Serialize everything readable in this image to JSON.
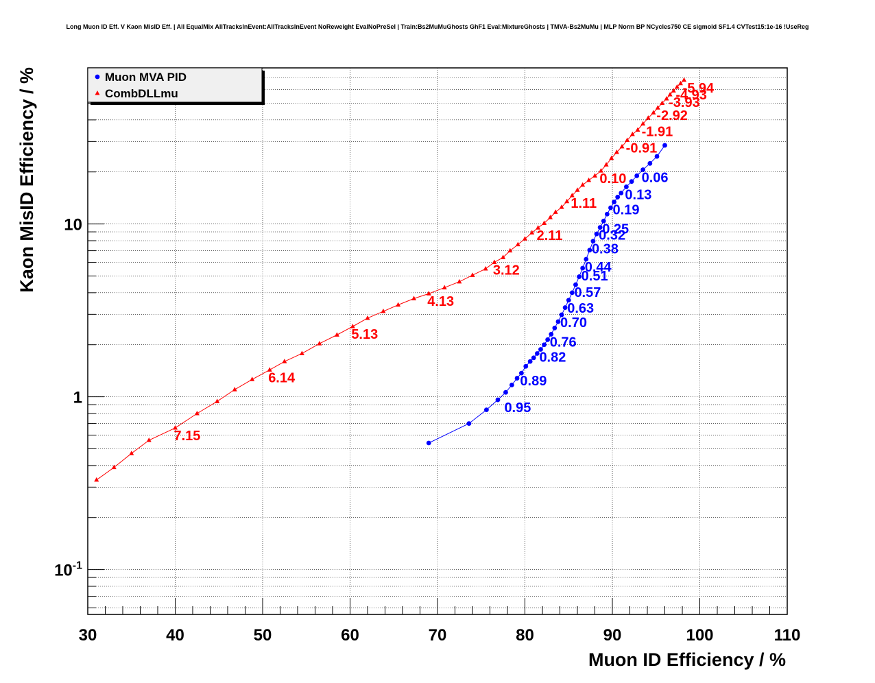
{
  "chart_data": {
    "type": "scatter",
    "title": "Long Muon ID Eff. V Kaon MisID Eff. | All EqualMix AllTracksInEvent:AllTracksInEvent NoReweight EvalNoPreSel | Train:Bs2MuMuGhosts GhF1 Eval:MixtureGhosts | TMVA-Bs2MuMu | MLP Norm BP NCycles750 CE sigmoid SF1.4 CVTest15:1e-16 !UseReg",
    "xlabel": "Muon ID Efficiency / %",
    "ylabel": "Kaon MisID Efficiency / %",
    "xlim": [
      30,
      110
    ],
    "ylim": [
      0.055,
      80
    ],
    "y_scale": "log",
    "grid": true,
    "legend_position": "top-left",
    "x_ticks": [
      "30",
      "40",
      "50",
      "60",
      "70",
      "80",
      "90",
      "100",
      "110"
    ],
    "y_ticks": [
      {
        "base": "10",
        "exp": "-1",
        "value": 0.1
      },
      {
        "base": "1",
        "exp": "",
        "value": 1
      },
      {
        "base": "10",
        "exp": "",
        "value": 10
      }
    ],
    "series": [
      {
        "name": "Muon MVA PID",
        "color": "#0000ff",
        "marker": "circle",
        "points": [
          [
            69.0,
            0.54
          ],
          [
            73.6,
            0.7
          ],
          [
            75.6,
            0.84
          ],
          [
            76.9,
            0.96
          ],
          [
            77.8,
            1.06
          ],
          [
            78.5,
            1.17
          ],
          [
            79.1,
            1.28
          ],
          [
            79.6,
            1.37
          ],
          [
            80.1,
            1.5
          ],
          [
            80.6,
            1.6
          ],
          [
            81.0,
            1.68
          ],
          [
            81.4,
            1.78
          ],
          [
            81.8,
            1.88
          ],
          [
            82.2,
            2.0
          ],
          [
            82.6,
            2.14
          ],
          [
            83.0,
            2.3
          ],
          [
            83.4,
            2.5
          ],
          [
            83.8,
            2.72
          ],
          [
            84.2,
            2.98
          ],
          [
            84.6,
            3.28
          ],
          [
            85.0,
            3.62
          ],
          [
            85.4,
            4.0
          ],
          [
            85.8,
            4.45
          ],
          [
            86.2,
            4.95
          ],
          [
            86.6,
            5.55
          ],
          [
            87.0,
            6.25
          ],
          [
            87.4,
            7.05
          ],
          [
            87.8,
            7.95
          ],
          [
            88.2,
            8.75
          ],
          [
            88.6,
            9.55
          ],
          [
            89.0,
            10.4
          ],
          [
            89.4,
            11.4
          ],
          [
            89.8,
            12.4
          ],
          [
            90.2,
            13.4
          ],
          [
            90.6,
            14.3
          ],
          [
            91.0,
            15.1
          ],
          [
            91.6,
            16.4
          ],
          [
            92.2,
            17.6
          ],
          [
            92.8,
            19.0
          ],
          [
            93.5,
            20.6
          ],
          [
            94.3,
            22.4
          ],
          [
            95.1,
            24.6
          ],
          [
            96.0,
            28.5
          ]
        ],
        "labels": [
          {
            "text": "0.95",
            "x": 77.8,
            "y": 0.96
          },
          {
            "text": "0.89",
            "x": 79.6,
            "y": 1.37
          },
          {
            "text": "0.82",
            "x": 81.8,
            "y": 1.88
          },
          {
            "text": "0.76",
            "x": 83.0,
            "y": 2.3
          },
          {
            "text": "0.70",
            "x": 84.2,
            "y": 2.98
          },
          {
            "text": "0.63",
            "x": 85.0,
            "y": 3.62
          },
          {
            "text": "0.57",
            "x": 85.8,
            "y": 4.45
          },
          {
            "text": "0.51",
            "x": 86.6,
            "y": 5.55
          },
          {
            "text": "0.44",
            "x": 87.0,
            "y": 6.25
          },
          {
            "text": "0.38",
            "x": 87.8,
            "y": 7.95
          },
          {
            "text": "0.32",
            "x": 88.6,
            "y": 9.55
          },
          {
            "text": "0.25",
            "x": 89.0,
            "y": 10.4
          },
          {
            "text": "0.19",
            "x": 90.2,
            "y": 13.4
          },
          {
            "text": "0.13",
            "x": 91.6,
            "y": 16.4
          },
          {
            "text": "0.06",
            "x": 93.5,
            "y": 20.6
          }
        ]
      },
      {
        "name": "CombDLLmu",
        "color": "#ff0000",
        "marker": "triangle",
        "points": [
          [
            31.0,
            0.33
          ],
          [
            33.0,
            0.39
          ],
          [
            35.0,
            0.47
          ],
          [
            37.0,
            0.56
          ],
          [
            40.0,
            0.66
          ],
          [
            42.5,
            0.8
          ],
          [
            44.8,
            0.94
          ],
          [
            46.8,
            1.1
          ],
          [
            48.8,
            1.26
          ],
          [
            50.8,
            1.43
          ],
          [
            52.5,
            1.6
          ],
          [
            54.5,
            1.78
          ],
          [
            56.5,
            2.03
          ],
          [
            58.5,
            2.28
          ],
          [
            60.3,
            2.55
          ],
          [
            62.0,
            2.85
          ],
          [
            63.8,
            3.12
          ],
          [
            65.5,
            3.4
          ],
          [
            67.3,
            3.7
          ],
          [
            69.0,
            3.95
          ],
          [
            70.8,
            4.28
          ],
          [
            72.5,
            4.63
          ],
          [
            74.0,
            5.05
          ],
          [
            75.5,
            5.5
          ],
          [
            76.5,
            6.0
          ],
          [
            77.5,
            6.4
          ],
          [
            78.3,
            7.0
          ],
          [
            79.2,
            7.6
          ],
          [
            80.0,
            8.2
          ],
          [
            80.8,
            8.9
          ],
          [
            81.5,
            9.5
          ],
          [
            82.2,
            10.1
          ],
          [
            82.9,
            10.9
          ],
          [
            83.5,
            11.7
          ],
          [
            84.2,
            12.5
          ],
          [
            84.8,
            13.5
          ],
          [
            85.4,
            14.6
          ],
          [
            86.0,
            15.7
          ],
          [
            86.6,
            16.8
          ],
          [
            87.3,
            17.9
          ],
          [
            88.0,
            19.0
          ],
          [
            88.7,
            20.3
          ],
          [
            89.3,
            22.0
          ],
          [
            89.9,
            24.0
          ],
          [
            90.5,
            26.0
          ],
          [
            91.1,
            28.0
          ],
          [
            91.7,
            30.5
          ],
          [
            92.3,
            33.0
          ],
          [
            92.9,
            35.0
          ],
          [
            93.5,
            38.0
          ],
          [
            94.1,
            41.0
          ],
          [
            94.7,
            44.0
          ],
          [
            95.2,
            47.0
          ],
          [
            95.7,
            50.0
          ],
          [
            96.2,
            53.0
          ],
          [
            96.6,
            56.0
          ],
          [
            97.0,
            59.0
          ],
          [
            97.4,
            62.0
          ],
          [
            97.8,
            65.0
          ],
          [
            98.2,
            68.0
          ]
        ],
        "labels": [
          {
            "text": "7.15",
            "x": 40.0,
            "y": 0.66
          },
          {
            "text": "6.14",
            "x": 50.8,
            "y": 1.43
          },
          {
            "text": "5.13",
            "x": 60.3,
            "y": 2.55
          },
          {
            "text": "4.13",
            "x": 69.0,
            "y": 3.95
          },
          {
            "text": "3.12",
            "x": 76.5,
            "y": 6.0
          },
          {
            "text": "2.11",
            "x": 81.5,
            "y": 9.5
          },
          {
            "text": "1.11",
            "x": 85.4,
            "y": 14.6
          },
          {
            "text": "0.10",
            "x": 88.7,
            "y": 20.3
          },
          {
            "text": "-0.91",
            "x": 91.7,
            "y": 30.5
          },
          {
            "text": "-1.91",
            "x": 93.5,
            "y": 38.0
          },
          {
            "text": "-2.92",
            "x": 95.2,
            "y": 47.0
          },
          {
            "text": "-3.93",
            "x": 96.6,
            "y": 56.0
          },
          {
            "text": "-4.93",
            "x": 97.4,
            "y": 62.0
          },
          {
            "text": "-5.94",
            "x": 98.2,
            "y": 68.0
          }
        ]
      }
    ]
  }
}
